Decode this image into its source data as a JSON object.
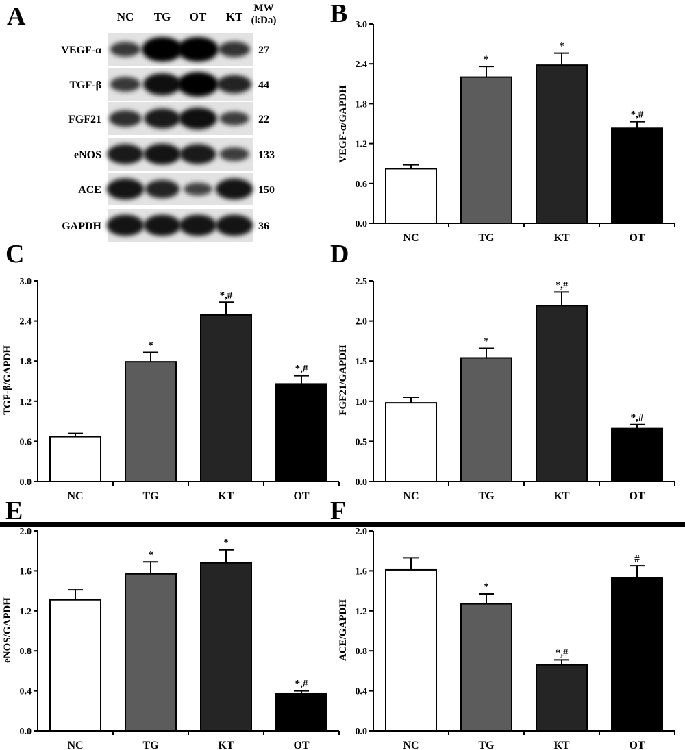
{
  "blot": {
    "panel_letter": "A",
    "lane_labels": [
      "NC",
      "TG",
      "OT",
      "KT"
    ],
    "mw_header": [
      "MW",
      "(kDa)"
    ],
    "rows": [
      {
        "protein": "VEGF-α",
        "mw": "27"
      },
      {
        "protein": "TGF-β",
        "mw": "44"
      },
      {
        "protein": "FGF21",
        "mw": "22"
      },
      {
        "protein": "eNOS",
        "mw": "133"
      },
      {
        "protein": "ACE",
        "mw": "150"
      },
      {
        "protein": "GAPDH",
        "mw": "36"
      }
    ],
    "band_intensity": [
      [
        0.45,
        1.0,
        1.0,
        0.5
      ],
      [
        0.45,
        0.85,
        1.0,
        0.65
      ],
      [
        0.55,
        0.75,
        0.85,
        0.4
      ],
      [
        0.75,
        0.8,
        0.75,
        0.4
      ],
      [
        0.8,
        0.65,
        0.35,
        0.8
      ],
      [
        0.8,
        0.8,
        0.8,
        0.8
      ]
    ]
  },
  "chart_data": [
    {
      "panel": "B",
      "type": "bar",
      "categories": [
        "NC",
        "TG",
        "KT",
        "OT"
      ],
      "values": [
        0.82,
        2.2,
        2.38,
        1.43
      ],
      "errors": [
        0.06,
        0.16,
        0.18,
        0.1
      ],
      "annotations": [
        "",
        "*",
        "*",
        "*,#"
      ],
      "ylabel": "VEGF-α/GAPDH",
      "ylim": [
        0,
        3.0
      ],
      "yticks": [
        "0.0",
        "0.6",
        "1.2",
        "1.8",
        "2.4",
        "3.0"
      ],
      "bar_colors": [
        "#ffffff",
        "#5c5c5c",
        "#252525",
        "#000000"
      ]
    },
    {
      "panel": "C",
      "type": "bar",
      "categories": [
        "NC",
        "TG",
        "KT",
        "OT"
      ],
      "values": [
        0.67,
        1.79,
        2.49,
        1.46
      ],
      "errors": [
        0.05,
        0.14,
        0.19,
        0.12
      ],
      "annotations": [
        "",
        "*",
        "*,#",
        "*,#"
      ],
      "ylabel": "TGF-β/GAPDH",
      "ylim": [
        0,
        3.0
      ],
      "yticks": [
        "0.0",
        "0.6",
        "1.2",
        "1.8",
        "2.4",
        "3.0"
      ],
      "bar_colors": [
        "#ffffff",
        "#5c5c5c",
        "#252525",
        "#000000"
      ]
    },
    {
      "panel": "D",
      "type": "bar",
      "categories": [
        "NC",
        "TG",
        "KT",
        "OT"
      ],
      "values": [
        0.98,
        1.54,
        2.19,
        0.66
      ],
      "errors": [
        0.07,
        0.12,
        0.17,
        0.05
      ],
      "annotations": [
        "",
        "*",
        "*,#",
        "*,#"
      ],
      "ylabel": "FGF21/GAPDH",
      "ylim": [
        0,
        2.5
      ],
      "yticks": [
        "0.0",
        "0.5",
        "1.0",
        "1.5",
        "2.0",
        "2.5"
      ],
      "bar_colors": [
        "#ffffff",
        "#5c5c5c",
        "#252525",
        "#000000"
      ]
    },
    {
      "panel": "E",
      "type": "bar",
      "categories": [
        "NC",
        "TG",
        "KT",
        "OT"
      ],
      "values": [
        1.31,
        1.57,
        1.68,
        0.37
      ],
      "errors": [
        0.1,
        0.12,
        0.13,
        0.03
      ],
      "annotations": [
        "",
        "*",
        "*",
        "*,#"
      ],
      "ylabel": "eNOS/GAPDH",
      "ylim": [
        0,
        2.0
      ],
      "yticks": [
        "0.0",
        "0.4",
        "0.8",
        "1.2",
        "1.6",
        "2.0"
      ],
      "bar_colors": [
        "#ffffff",
        "#5c5c5c",
        "#252525",
        "#000000"
      ]
    },
    {
      "panel": "F",
      "type": "bar",
      "categories": [
        "NC",
        "TG",
        "KT",
        "OT"
      ],
      "values": [
        1.61,
        1.27,
        0.66,
        1.53
      ],
      "errors": [
        0.12,
        0.1,
        0.05,
        0.12
      ],
      "annotations": [
        "",
        "*",
        "*,#",
        "#"
      ],
      "ylabel": "ACE/GAPDH",
      "ylim": [
        0,
        2.0
      ],
      "yticks": [
        "0.0",
        "0.4",
        "0.8",
        "1.2",
        "1.6",
        "2.0"
      ],
      "bar_colors": [
        "#ffffff",
        "#5c5c5c",
        "#252525",
        "#000000"
      ]
    }
  ]
}
